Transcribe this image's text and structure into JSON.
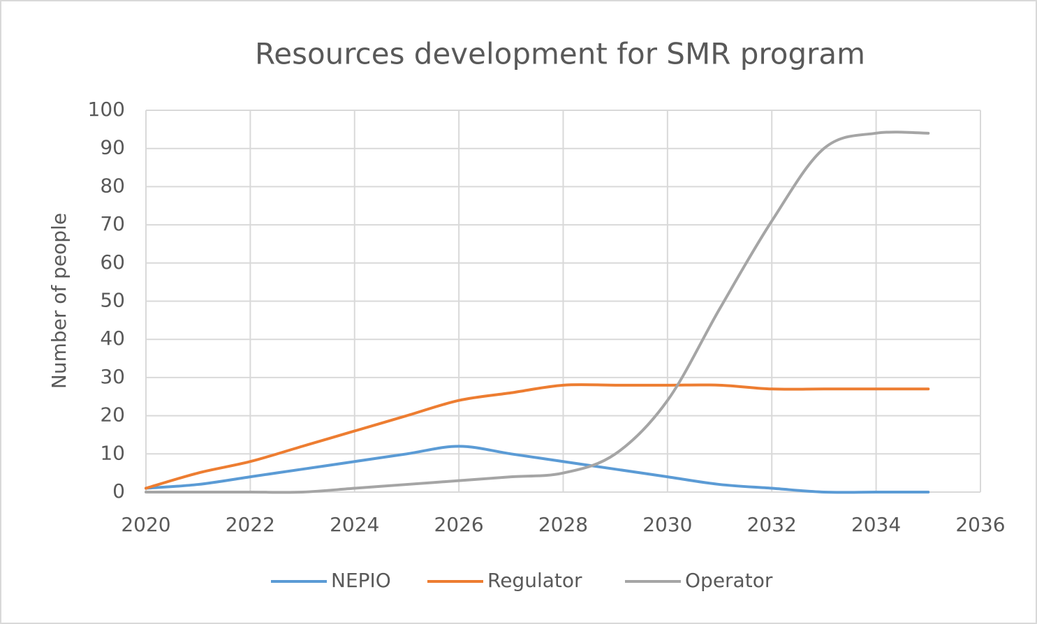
{
  "chart_data": {
    "type": "line",
    "title": "Resources development for SMR program",
    "y_label": "Number of people",
    "x": [
      2020,
      2021,
      2022,
      2023,
      2024,
      2025,
      2026,
      2027,
      2028,
      2029,
      2030,
      2031,
      2032,
      2033,
      2034,
      2035
    ],
    "series": [
      {
        "name": "NEPIO",
        "color": "#5b9bd5",
        "values": [
          1,
          2,
          4,
          6,
          8,
          10,
          12,
          10,
          8,
          6,
          4,
          2,
          1,
          0,
          0,
          0
        ]
      },
      {
        "name": "Regulator",
        "color": "#ed7d31",
        "values": [
          1,
          5,
          8,
          12,
          16,
          20,
          24,
          26,
          28,
          28,
          28,
          28,
          27,
          27,
          27,
          27
        ]
      },
      {
        "name": "Operator",
        "color": "#a5a5a5",
        "values": [
          0,
          0,
          0,
          0,
          1,
          2,
          3,
          4,
          5,
          10,
          24,
          48,
          71,
          90,
          94,
          94
        ]
      }
    ],
    "xlim": [
      2020,
      2036
    ],
    "xticks": [
      2020,
      2022,
      2024,
      2026,
      2028,
      2030,
      2032,
      2034,
      2036
    ],
    "ylim": [
      0,
      100
    ],
    "yticks": [
      0,
      10,
      20,
      30,
      40,
      50,
      60,
      70,
      80,
      90,
      100
    ],
    "grid": true,
    "smooth": true,
    "legend": "bottom"
  }
}
